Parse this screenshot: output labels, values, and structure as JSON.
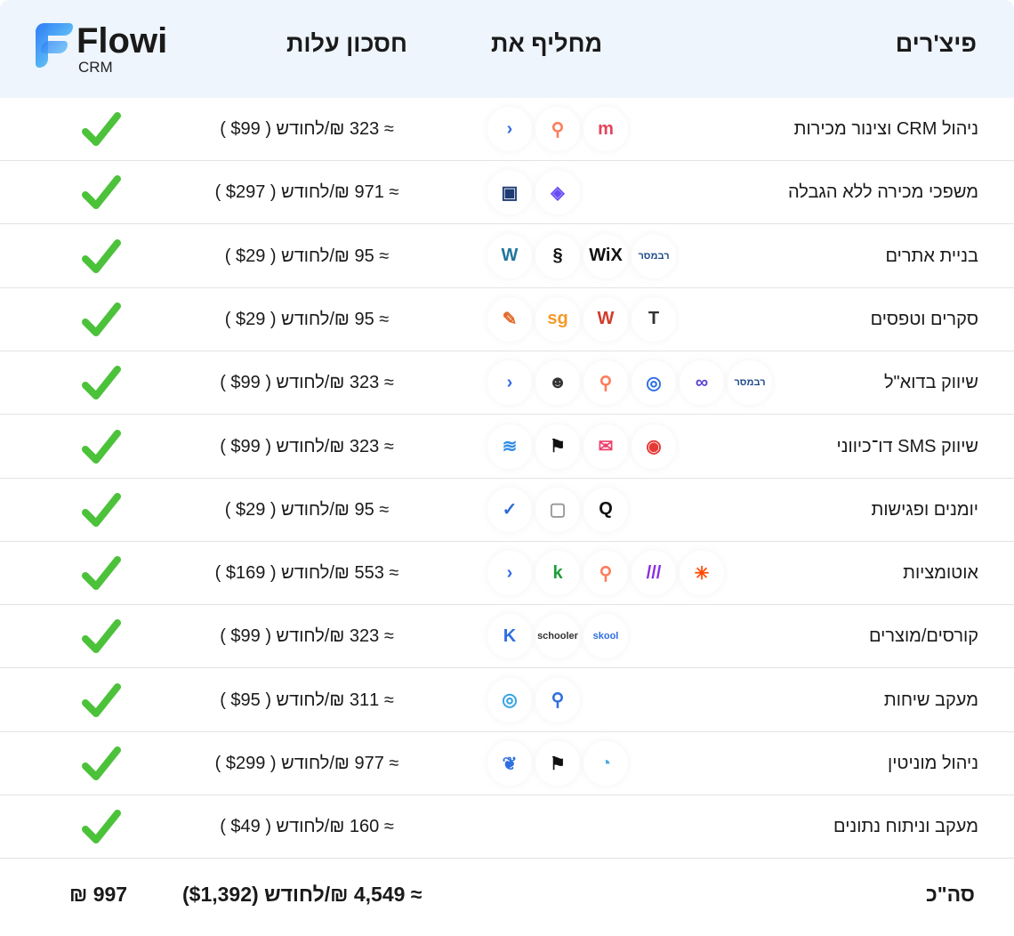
{
  "brand": {
    "name": "Flowi",
    "sub": "CRM",
    "accent": "#2f7cf6"
  },
  "header": {
    "features": "פיצ'רים",
    "replaces": "מחליף את",
    "savings": "חסכון עלות"
  },
  "check_color": "#4cc23a",
  "rows": [
    {
      "feature": "ניהול CRM וצינור מכירות",
      "savings": "≈ 323 ₪/לחודש ( $99 )",
      "icons": [
        {
          "name": "monday-logo",
          "glyph": "m",
          "color": "#e2445c"
        },
        {
          "name": "hubspot-logo",
          "glyph": "⚲",
          "color": "#ff7a59"
        },
        {
          "name": "activecampaign-logo",
          "glyph": "›",
          "color": "#356ae6"
        }
      ]
    },
    {
      "feature": "משפכי מכירה ללא הגבלה",
      "savings": "≈ 971 ₪/לחודש ( $297 )",
      "icons": [
        {
          "name": "layers-logo",
          "glyph": "◈",
          "color": "#6a4cf5"
        },
        {
          "name": "clickfunnels-logo",
          "glyph": "▣",
          "color": "#1f3b73"
        }
      ]
    },
    {
      "feature": "בניית אתרים",
      "savings": "≈ 95 ₪/לחודש ( $29 )",
      "icons": [
        {
          "name": "rav-messer-logo",
          "glyph": "רבמסר",
          "color": "#1e4a8a"
        },
        {
          "name": "wix-logo",
          "glyph": "WiX",
          "color": "#111"
        },
        {
          "name": "squarespace-logo",
          "glyph": "§",
          "color": "#111"
        },
        {
          "name": "wordpress-logo",
          "glyph": "W",
          "color": "#21759b"
        }
      ]
    },
    {
      "feature": "סקרים וטפסים",
      "savings": "≈ 95 ₪/לחודש ( $29 )",
      "icons": [
        {
          "name": "typeform-logo",
          "glyph": "T",
          "color": "#333"
        },
        {
          "name": "wufoo-logo",
          "glyph": "W",
          "color": "#d33c2a"
        },
        {
          "name": "surveygizmo-logo",
          "glyph": "sg",
          "color": "#f39a2b"
        },
        {
          "name": "pen-logo",
          "glyph": "✎",
          "color": "#e46a2b"
        }
      ]
    },
    {
      "feature": "שיווק בדוא\"ל",
      "savings": "≈ 323 ₪/לחודש ( $99 )",
      "icons": [
        {
          "name": "rav-messer-logo",
          "glyph": "רבמסר",
          "color": "#1e4a8a"
        },
        {
          "name": "smoove-logo",
          "glyph": "∞",
          "color": "#5a3fd1"
        },
        {
          "name": "activetrail-logo",
          "glyph": "◎",
          "color": "#2f6fe0"
        },
        {
          "name": "hubspot-logo",
          "glyph": "⚲",
          "color": "#ff7a59"
        },
        {
          "name": "mailchimp-logo",
          "glyph": "☻",
          "color": "#333"
        },
        {
          "name": "activecampaign-logo",
          "glyph": "›",
          "color": "#356ae6"
        }
      ]
    },
    {
      "feature": "שיווק SMS דו־כיווני",
      "savings": "≈ 323 ₪/לחודש ( $99 )",
      "icons": [
        {
          "name": "voicecenter-logo",
          "glyph": "◉",
          "color": "#e53935"
        },
        {
          "name": "envelope-logo",
          "glyph": "✉",
          "color": "#ef3e6b"
        },
        {
          "name": "flag-logo",
          "glyph": "⚑",
          "color": "#111"
        },
        {
          "name": "stack-logo",
          "glyph": "≋",
          "color": "#2f8be6"
        }
      ]
    },
    {
      "feature": "יומנים ופגישות",
      "savings": "≈ 95 ₪/לחודש ( $29 )",
      "icons": [
        {
          "name": "q-logo",
          "glyph": "Q",
          "color": "#111"
        },
        {
          "name": "calendar-logo",
          "glyph": "▢",
          "color": "#999"
        },
        {
          "name": "check-circle-logo",
          "glyph": "✓",
          "color": "#2e6bd6"
        }
      ]
    },
    {
      "feature": "אוטומציות",
      "savings": "≈ 553 ₪/לחודש ( $169 )",
      "icons": [
        {
          "name": "zapier-logo",
          "glyph": "✳",
          "color": "#ff4a00"
        },
        {
          "name": "make-logo",
          "glyph": "///",
          "color": "#8a2be2"
        },
        {
          "name": "hubspot-logo",
          "glyph": "⚲",
          "color": "#ff7a59"
        },
        {
          "name": "kartra-logo",
          "glyph": "k",
          "color": "#1e9e3a"
        },
        {
          "name": "activecampaign-logo",
          "glyph": "›",
          "color": "#356ae6"
        }
      ]
    },
    {
      "feature": "קורסים/מוצרים",
      "savings": "≈ 323 ₪/לחודש ( $99 )",
      "icons": [
        {
          "name": "skool-logo",
          "glyph": "skool",
          "color": "#2f6fe0"
        },
        {
          "name": "schooler-logo",
          "glyph": "schooler",
          "color": "#333"
        },
        {
          "name": "kajabi-logo",
          "glyph": "K",
          "color": "#2f6fe0"
        }
      ]
    },
    {
      "feature": "מעקב שיחות",
      "savings": "≈ 311 ₪/לחודש ( $95 )",
      "icons": [
        {
          "name": "pin-logo",
          "glyph": "⚲",
          "color": "#2f6fe0"
        },
        {
          "name": "ring-logo",
          "glyph": "◎",
          "color": "#2fa3e6"
        }
      ]
    },
    {
      "feature": "ניהול מוניטין",
      "savings": "≈ 977 ₪/לחודש ( $299 )",
      "icons": [
        {
          "name": "pie-logo",
          "glyph": "◔",
          "color": "#4aa8e0"
        },
        {
          "name": "flag-logo",
          "glyph": "⚑",
          "color": "#111"
        },
        {
          "name": "bird-logo",
          "glyph": "❦",
          "color": "#2f6fe0"
        }
      ]
    },
    {
      "feature": "מעקב וניתוח נתונים",
      "savings": "≈ 160 ₪/לחודש ( $49 )",
      "icons": []
    }
  ],
  "total": {
    "label": "סה\"כ",
    "savings": "≈ 4,549 ₪/לחודש ($1,392)",
    "price": "997 ₪"
  }
}
